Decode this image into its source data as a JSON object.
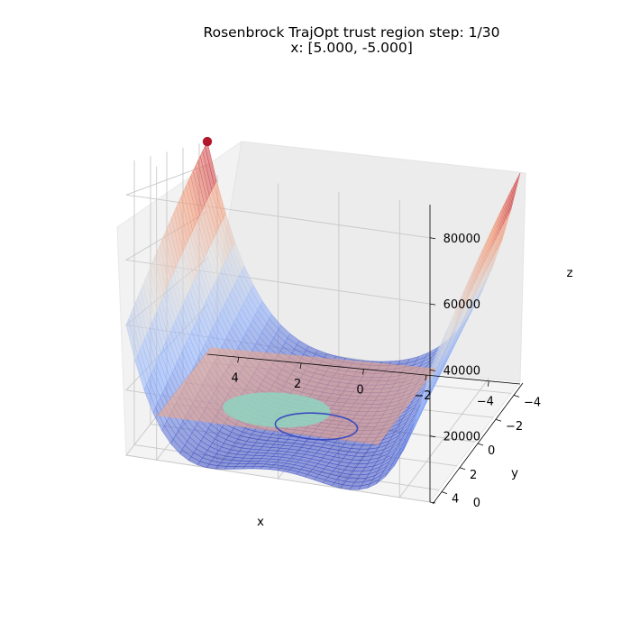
{
  "chart_data": {
    "type": "surface",
    "title": {
      "line1": "Rosenbrock TrajOpt trust region step: 1/30",
      "line2": "x: [5.000, -5.000]"
    },
    "xlabel": "x",
    "ylabel": "y",
    "zlabel": "z",
    "xlim": [
      -5,
      5
    ],
    "ylim": [
      -5,
      5
    ],
    "zlim": [
      0,
      90036
    ],
    "x_ticks": [
      4,
      2,
      0,
      -2,
      -4
    ],
    "x_tick_labels": [
      "4",
      "2",
      "0",
      "−2",
      "−4"
    ],
    "y_ticks": [
      -4,
      -2,
      0,
      2,
      4
    ],
    "y_tick_labels": [
      "−4",
      "−2",
      "0",
      "2",
      "4"
    ],
    "z_ticks": [
      0,
      20000,
      40000,
      60000,
      80000
    ],
    "z_tick_labels": [
      "0",
      "20000",
      "40000",
      "60000",
      "80000"
    ],
    "function": "rosenbrock",
    "surface_colormap": "coolwarm",
    "grid": true,
    "current_point": {
      "x": 5.0,
      "y": -5.0,
      "z": 90016,
      "color": "#b2182b"
    },
    "trust_region": {
      "center": [
        5.0,
        -5.0
      ],
      "radius": 2.0,
      "color": "#3b4cc0"
    },
    "model_plane": {
      "color": "#f4a582"
    },
    "step_patch": {
      "color": "#8fd3c0"
    }
  }
}
